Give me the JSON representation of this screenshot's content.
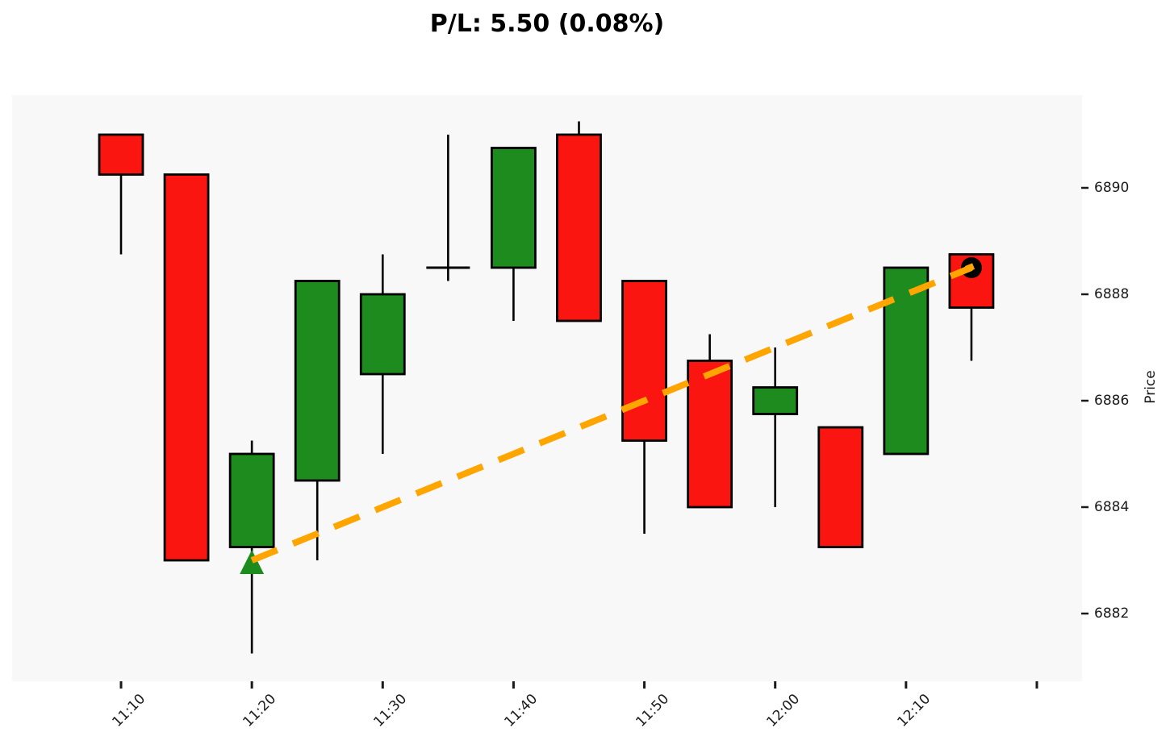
{
  "chart_data": {
    "type": "candlestick",
    "title": "P/L: 5.50 (0.08%)",
    "ylabel": "Price",
    "grid": false,
    "legend": null,
    "y_ticks": [
      6890,
      6888,
      6886,
      6884,
      6882
    ],
    "ylim": [
      6880.73,
      6891.74
    ],
    "x_axis": {
      "tick_labels": [
        "11:10",
        "11:20",
        "11:30",
        "11:40",
        "11:50",
        "12:00",
        "12:10",
        ""
      ]
    },
    "candles": [
      {
        "time": "11:10",
        "open": 6891.0,
        "high": 6891.0,
        "low": 6888.75,
        "close": 6890.25
      },
      {
        "time": "11:15",
        "open": 6890.25,
        "high": 6890.25,
        "low": 6883.0,
        "close": 6883.0
      },
      {
        "time": "11:20",
        "open": 6883.25,
        "high": 6885.25,
        "low": 6881.25,
        "close": 6885.0
      },
      {
        "time": "11:25",
        "open": 6884.5,
        "high": 6888.25,
        "low": 6883.0,
        "close": 6888.25
      },
      {
        "time": "11:30",
        "open": 6886.5,
        "high": 6888.75,
        "low": 6885.0,
        "close": 6888.0
      },
      {
        "time": "11:35",
        "open": 6888.5,
        "high": 6891.0,
        "low": 6888.25,
        "close": 6888.5
      },
      {
        "time": "11:40",
        "open": 6888.5,
        "high": 6890.75,
        "low": 6887.5,
        "close": 6890.75
      },
      {
        "time": "11:45",
        "open": 6891.0,
        "high": 6891.25,
        "low": 6887.5,
        "close": 6887.5
      },
      {
        "time": "11:50",
        "open": 6888.25,
        "high": 6888.25,
        "low": 6883.5,
        "close": 6885.25
      },
      {
        "time": "11:55",
        "open": 6886.75,
        "high": 6887.25,
        "low": 6884.0,
        "close": 6884.0
      },
      {
        "time": "12:00",
        "open": 6885.75,
        "high": 6887.0,
        "low": 6884.0,
        "close": 6886.25
      },
      {
        "time": "12:05",
        "open": 6885.5,
        "high": 6885.5,
        "low": 6883.25,
        "close": 6883.25
      },
      {
        "time": "12:10",
        "open": 6885.0,
        "high": 6888.5,
        "low": 6885.0,
        "close": 6888.5
      },
      {
        "time": "12:15",
        "open": 6888.75,
        "high": 6888.75,
        "low": 6886.75,
        "close": 6887.75
      }
    ],
    "trade": {
      "entry_time": "11:20",
      "entry_price": 6883.0,
      "entry_marker": "triangle-up",
      "exit_time": "12:15",
      "exit_price": 6888.5,
      "exit_marker": "circle",
      "line_style": "dashed",
      "pl": "5.50",
      "pl_pct": "0.08%"
    },
    "colors": {
      "up": "#1E8B1E",
      "down": "#FB1510",
      "outline": "#000000",
      "wick": "#000000",
      "trade_line": "#FFA500",
      "entry_marker": "#1E8B1E",
      "exit_marker": "#000000",
      "plot_bg": "#F8F8F8",
      "axis_text": "#1A1A1A"
    }
  }
}
